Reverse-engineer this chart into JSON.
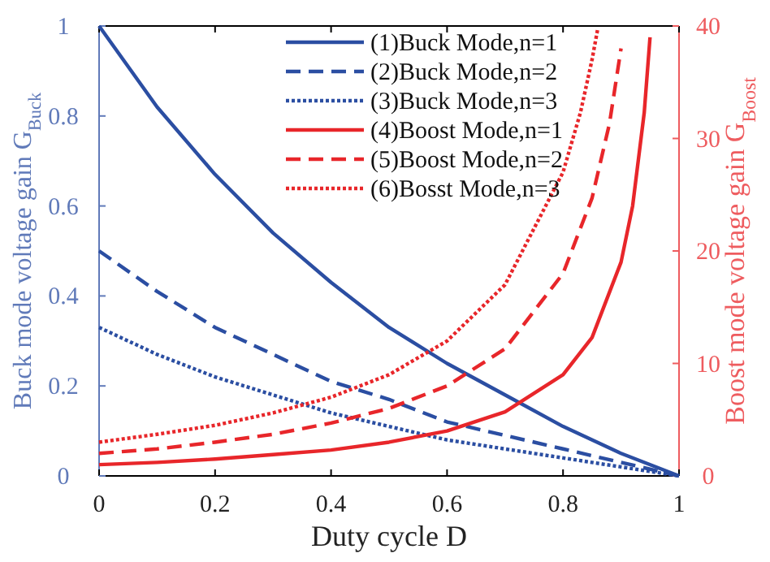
{
  "chart_data": {
    "type": "line",
    "xlabel": "Duty cycle D",
    "ylabel": "Buck mode voltage gain G$_{Buck}$",
    "y2label": "Boost mode voltage gain G$_{Boost}$",
    "xlim": [
      0,
      1
    ],
    "xticks": [
      0,
      0.2,
      0.4,
      0.6,
      0.8,
      1
    ],
    "ylim": [
      0,
      1
    ],
    "yticks": [
      0,
      0.2,
      0.4,
      0.6,
      0.8,
      1
    ],
    "y2lim": [
      0,
      40
    ],
    "y2ticks": [
      0,
      10,
      20,
      30,
      40
    ],
    "legend": "top right",
    "grid": false,
    "series": [
      {
        "name": "(1)Buck Mode,n=1",
        "color": "#2b4ea2",
        "line_style": "solid",
        "x": [
          0,
          0.1,
          0.2,
          0.3,
          0.4,
          0.5,
          0.6,
          0.7,
          0.8,
          0.9,
          1
        ],
        "values": [
          1,
          0.82,
          0.67,
          0.54,
          0.43,
          0.33,
          0.25,
          0.18,
          0.11,
          0.05,
          0
        ]
      },
      {
        "name": "(2)Buck Mode,n=2",
        "color": "#2b4ea2",
        "line_style": "dashed",
        "x": [
          0,
          0.1,
          0.2,
          0.3,
          0.4,
          0.5,
          0.6,
          0.7,
          0.8,
          0.9,
          1
        ],
        "values": [
          0.5,
          0.41,
          0.33,
          0.27,
          0.21,
          0.17,
          0.12,
          0.09,
          0.06,
          0.03,
          0
        ]
      },
      {
        "name": "(3)Buck Mode,n=3",
        "color": "#2b4ea2",
        "line_style": "dotted",
        "x": [
          0,
          0.1,
          0.2,
          0.3,
          0.4,
          0.5,
          0.6,
          0.7,
          0.8,
          0.9,
          1
        ],
        "values": [
          0.33,
          0.27,
          0.22,
          0.18,
          0.14,
          0.11,
          0.08,
          0.06,
          0.04,
          0.02,
          0
        ]
      },
      {
        "name": "(4)Boost Mode,n=1",
        "color": "#e8262a",
        "line_style": "solid",
        "axis": "y2",
        "x": [
          0,
          0.1,
          0.2,
          0.3,
          0.4,
          0.5,
          0.6,
          0.7,
          0.8,
          0.85,
          0.9,
          0.92,
          0.94,
          0.95
        ],
        "values": [
          1,
          1.2,
          1.5,
          1.9,
          2.3,
          3,
          4,
          5.7,
          9,
          12.3,
          19,
          24,
          32.3,
          39
        ]
      },
      {
        "name": "(5)Boost Mode,n=2",
        "color": "#e8262a",
        "line_style": "dashed",
        "axis": "y2",
        "x": [
          0,
          0.1,
          0.2,
          0.3,
          0.4,
          0.5,
          0.6,
          0.7,
          0.8,
          0.85,
          0.88,
          0.9
        ],
        "values": [
          2,
          2.4,
          3,
          3.7,
          4.7,
          6,
          8,
          11.3,
          18,
          24.7,
          31.3,
          38
        ]
      },
      {
        "name": "(6)Bosst Mode,n=3",
        "color": "#e8262a",
        "line_style": "dotted",
        "axis": "y2",
        "x": [
          0,
          0.1,
          0.2,
          0.3,
          0.4,
          0.5,
          0.6,
          0.7,
          0.8,
          0.83,
          0.85,
          0.86
        ],
        "values": [
          3,
          3.7,
          4.5,
          5.6,
          7,
          9,
          12,
          17,
          27,
          32.3,
          37,
          39.8
        ]
      }
    ]
  }
}
